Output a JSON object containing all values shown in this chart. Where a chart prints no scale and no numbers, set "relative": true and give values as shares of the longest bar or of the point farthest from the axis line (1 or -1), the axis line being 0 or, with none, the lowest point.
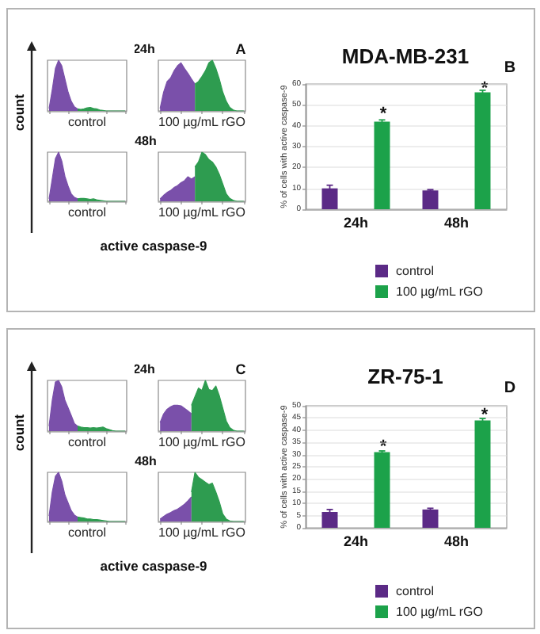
{
  "chart_data": [
    {
      "type": "area",
      "xlabel": "control",
      "ylabel": "count",
      "relative": true,
      "tick_labels": false,
      "categories": [
        null,
        null,
        null,
        null,
        null,
        null,
        null,
        null,
        null,
        null,
        null,
        null,
        null,
        null,
        null,
        null,
        null,
        null,
        null,
        null,
        null,
        null,
        null,
        null,
        null
      ],
      "series": [
        {
          "color": "#7a50aa",
          "values": [
            0.05,
            0.42,
            0.84,
            1,
            0.89,
            0.63,
            0.37,
            0.19,
            0.08,
            0.04,
            null,
            null,
            null,
            null,
            null,
            null,
            null,
            null,
            null,
            null,
            null,
            null,
            null,
            null,
            null
          ]
        },
        {
          "color": "#2e9c50",
          "values": [
            null,
            null,
            null,
            null,
            null,
            null,
            null,
            null,
            null,
            0.04,
            0.03,
            0.04,
            0.06,
            0.07,
            0.05,
            0.04,
            0.02,
            0.01,
            0,
            0,
            0,
            0,
            0,
            0,
            0
          ]
        }
      ]
    },
    {
      "type": "area",
      "title": "24h",
      "xlabel": "100 µg/mL rGO",
      "annotations": [
        "A"
      ],
      "relative": true,
      "tick_labels": false,
      "categories": [
        null,
        null,
        null,
        null,
        null,
        null,
        null,
        null,
        null,
        null,
        null,
        null,
        null,
        null,
        null,
        null,
        null,
        null,
        null,
        null,
        null,
        null,
        null,
        null,
        null
      ],
      "series": [
        {
          "color": "#7a50aa",
          "values": [
            0.05,
            0.37,
            0.58,
            0.65,
            0.79,
            0.89,
            0.95,
            0.84,
            0.74,
            0.63,
            0.53,
            null,
            null,
            null,
            null,
            null,
            null,
            null,
            null,
            null,
            null,
            null,
            null,
            null,
            null
          ]
        },
        {
          "color": "#2e9c50",
          "values": [
            null,
            null,
            null,
            null,
            null,
            null,
            null,
            null,
            null,
            null,
            0.53,
            0.58,
            0.68,
            0.79,
            0.95,
            1,
            0.84,
            0.63,
            0.37,
            0.19,
            0.07,
            0.02,
            0,
            0,
            0
          ]
        }
      ]
    },
    {
      "type": "area",
      "xlabel": "control",
      "relative": true,
      "tick_labels": false,
      "categories": [
        null,
        null,
        null,
        null,
        null,
        null,
        null,
        null,
        null,
        null,
        null,
        null,
        null,
        null,
        null,
        null,
        null,
        null,
        null,
        null,
        null,
        null,
        null,
        null,
        null
      ],
      "series": [
        {
          "color": "#7a50aa",
          "values": [
            0.05,
            0.46,
            0.87,
            1,
            0.82,
            0.51,
            0.31,
            0.15,
            0.08,
            0.05,
            null,
            null,
            null,
            null,
            null,
            null,
            null,
            null,
            null,
            null,
            null,
            null,
            null,
            null,
            null
          ]
        },
        {
          "color": "#2e9c50",
          "values": [
            null,
            null,
            null,
            null,
            null,
            null,
            null,
            null,
            null,
            0.05,
            0.06,
            0.06,
            0.05,
            0.04,
            0.05,
            0.03,
            0.02,
            0.01,
            0,
            0,
            0,
            0,
            0,
            0,
            0
          ]
        }
      ]
    },
    {
      "type": "area",
      "title": "48h",
      "xlabel": "100 µg/mL rGO",
      "annotations": [
        "active caspase-9"
      ],
      "relative": true,
      "tick_labels": false,
      "categories": [
        null,
        null,
        null,
        null,
        null,
        null,
        null,
        null,
        null,
        null,
        null,
        null,
        null,
        null,
        null,
        null,
        null,
        null,
        null,
        null,
        null,
        null,
        null,
        null,
        null
      ],
      "series": [
        {
          "color": "#7a50aa",
          "values": [
            0.05,
            0.12,
            0.18,
            0.22,
            0.28,
            0.32,
            0.38,
            0.42,
            0.5,
            0.45,
            0.5,
            null,
            null,
            null,
            null,
            null,
            null,
            null,
            null,
            null,
            null,
            null,
            null,
            null,
            null
          ]
        },
        {
          "color": "#2e9c50",
          "values": [
            null,
            null,
            null,
            null,
            null,
            null,
            null,
            null,
            null,
            null,
            0.7,
            0.8,
            1,
            0.95,
            0.85,
            0.8,
            0.7,
            0.55,
            0.35,
            0.15,
            0.06,
            0.02,
            0,
            0,
            0
          ]
        }
      ]
    },
    {
      "type": "bar",
      "title": "MDA-MB-231",
      "ylabel": "% of cells with active caspase-9",
      "annotations": [
        "B",
        "*",
        "*"
      ],
      "categories": [
        "24h",
        "48h"
      ],
      "series": [
        {
          "name": "control",
          "color": "#5b2a86",
          "values": [
            10,
            9
          ],
          "errors": [
            1.5,
            0.4
          ]
        },
        {
          "name": "100 µg/mL rGO",
          "color": "#1ca24a",
          "values": [
            42,
            56
          ],
          "errors": [
            0.8,
            1
          ]
        }
      ],
      "ylim": [
        0,
        60
      ],
      "yticks": [
        0,
        10,
        20,
        30,
        40,
        50,
        60
      ],
      "grid": "y",
      "legend": "bottom"
    },
    {
      "type": "area",
      "xlabel": "control",
      "ylabel": "count",
      "relative": true,
      "tick_labels": false,
      "categories": [
        null,
        null,
        null,
        null,
        null,
        null,
        null,
        null,
        null,
        null,
        null,
        null,
        null,
        null,
        null,
        null,
        null,
        null,
        null,
        null,
        null,
        null,
        null,
        null,
        null
      ],
      "series": [
        {
          "color": "#7a50aa",
          "values": [
            0.1,
            0.61,
            0.97,
            1,
            0.87,
            0.61,
            0.46,
            0.31,
            0.15,
            0.1,
            null,
            null,
            null,
            null,
            null,
            null,
            null,
            null,
            null,
            null,
            null,
            null,
            null,
            null,
            null
          ]
        },
        {
          "color": "#2e9c50",
          "values": [
            null,
            null,
            null,
            null,
            null,
            null,
            null,
            null,
            null,
            0.1,
            0.08,
            0.07,
            0.07,
            0.06,
            0.07,
            0.06,
            0.07,
            0.08,
            0.05,
            0.03,
            0.01,
            0,
            0,
            0,
            0
          ]
        }
      ]
    },
    {
      "type": "area",
      "title": "24h",
      "xlabel": "100 µg/mL rGO",
      "annotations": [
        "C"
      ],
      "relative": true,
      "tick_labels": false,
      "categories": [
        null,
        null,
        null,
        null,
        null,
        null,
        null,
        null,
        null,
        null,
        null,
        null,
        null,
        null,
        null,
        null,
        null,
        null,
        null,
        null,
        null,
        null,
        null,
        null,
        null
      ],
      "series": [
        {
          "color": "#7a50aa",
          "values": [
            0.17,
            0.34,
            0.43,
            0.48,
            0.51,
            0.51,
            0.5,
            0.45,
            0.4,
            0.34,
            null,
            null,
            null,
            null,
            null,
            null,
            null,
            null,
            null,
            null,
            null,
            null,
            null,
            null,
            null
          ]
        },
        {
          "color": "#2e9c50",
          "values": [
            null,
            null,
            null,
            null,
            null,
            null,
            null,
            null,
            null,
            0.51,
            0.68,
            0.85,
            0.8,
            1,
            0.82,
            0.8,
            0.89,
            0.7,
            0.45,
            0.2,
            0.07,
            0.02,
            0,
            0,
            0
          ]
        }
      ]
    },
    {
      "type": "area",
      "xlabel": "control",
      "relative": true,
      "tick_labels": false,
      "categories": [
        null,
        null,
        null,
        null,
        null,
        null,
        null,
        null,
        null,
        null,
        null,
        null,
        null,
        null,
        null,
        null,
        null,
        null,
        null,
        null,
        null,
        null,
        null,
        null,
        null
      ],
      "series": [
        {
          "color": "#7a50aa",
          "values": [
            0.11,
            0.6,
            0.92,
            1,
            0.82,
            0.54,
            0.38,
            0.22,
            0.13,
            0.09,
            null,
            null,
            null,
            null,
            null,
            null,
            null,
            null,
            null,
            null,
            null,
            null,
            null,
            null,
            null
          ]
        },
        {
          "color": "#2e9c50",
          "values": [
            null,
            null,
            null,
            null,
            null,
            null,
            null,
            null,
            null,
            0.09,
            0.08,
            0.07,
            0.05,
            0.05,
            0.04,
            0.04,
            0.03,
            0.02,
            0.01,
            0,
            0,
            0,
            0,
            0,
            0
          ]
        }
      ]
    },
    {
      "type": "area",
      "title": "48h",
      "xlabel": "100 µg/mL rGO",
      "annotations": [
        "active caspase-9"
      ],
      "relative": true,
      "tick_labels": false,
      "categories": [
        null,
        null,
        null,
        null,
        null,
        null,
        null,
        null,
        null,
        null,
        null,
        null,
        null,
        null,
        null,
        null,
        null,
        null,
        null,
        null,
        null,
        null,
        null,
        null,
        null
      ],
      "series": [
        {
          "color": "#7a50aa",
          "values": [
            0.05,
            0.1,
            0.15,
            0.18,
            0.22,
            0.25,
            0.3,
            0.35,
            0.42,
            0.5,
            null,
            null,
            null,
            null,
            null,
            null,
            null,
            null,
            null,
            null,
            null,
            null,
            null,
            null,
            null
          ]
        },
        {
          "color": "#2e9c50",
          "values": [
            null,
            null,
            null,
            null,
            null,
            null,
            null,
            null,
            null,
            0.6,
            1,
            0.9,
            0.85,
            0.8,
            0.75,
            0.78,
            0.6,
            0.4,
            0.15,
            0.05,
            0.01,
            0,
            0,
            0,
            0
          ]
        }
      ]
    },
    {
      "type": "bar",
      "title": "ZR-75-1",
      "ylabel": "% of cells with active caspase-9",
      "annotations": [
        "D",
        "*",
        "*"
      ],
      "categories": [
        "24h",
        "48h"
      ],
      "series": [
        {
          "name": "control",
          "color": "#5b2a86",
          "values": [
            6.5,
            7.5
          ],
          "errors": [
            1,
            0.5
          ]
        },
        {
          "name": "100 µg/mL rGO",
          "color": "#1ca24a",
          "values": [
            31,
            44
          ],
          "errors": [
            0.5,
            0.8
          ]
        }
      ],
      "ylim": [
        0,
        50
      ],
      "yticks": [
        0,
        5,
        10,
        15,
        20,
        25,
        30,
        35,
        40,
        45,
        50
      ],
      "grid": "y",
      "legend": "bottom"
    }
  ]
}
